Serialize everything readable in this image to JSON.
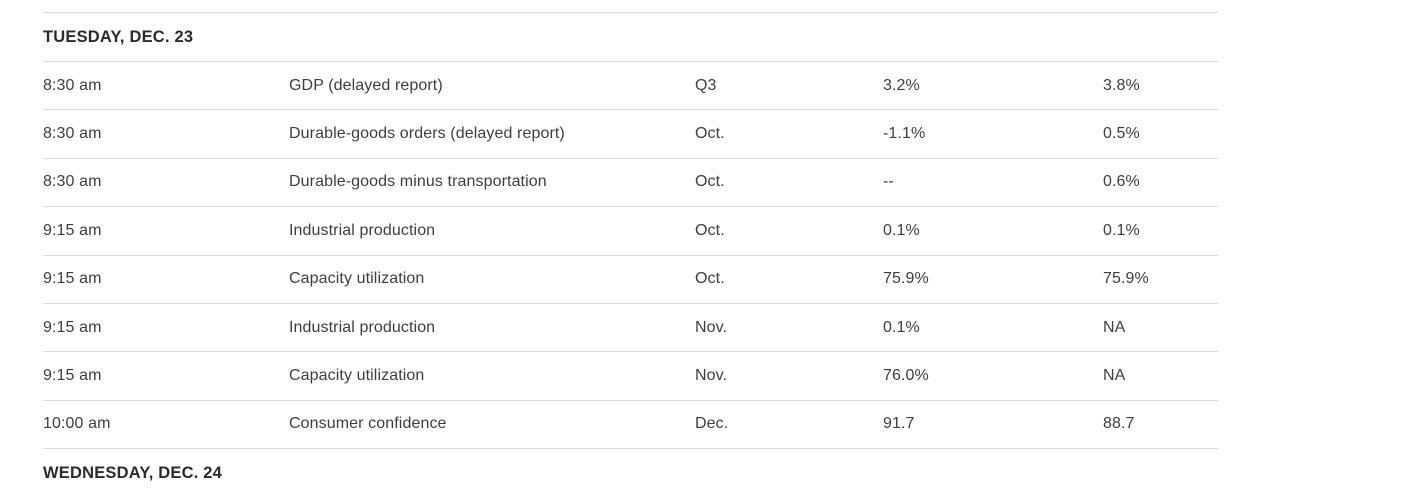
{
  "colors": {
    "background": "#ffffff",
    "day_header_text": "#2b2b2b",
    "cell_text": "#3e3e3e",
    "divider": "#dbdbdb"
  },
  "calendar": {
    "days": [
      {
        "label": "TUESDAY, DEC. 23",
        "rows": [
          {
            "time": "8:30 am",
            "report": "GDP (delayed report)",
            "period": "Q3",
            "value1": "3.2%",
            "value2": "3.8%"
          },
          {
            "time": "8:30 am",
            "report": "Durable-goods orders (delayed report)",
            "period": "Oct.",
            "value1": "-1.1%",
            "value2": "0.5%"
          },
          {
            "time": "8:30 am",
            "report": "Durable-goods minus transportation",
            "period": "Oct.",
            "value1": "--",
            "value2": "0.6%"
          },
          {
            "time": "9:15 am",
            "report": "Industrial production",
            "period": "Oct.",
            "value1": "0.1%",
            "value2": "0.1%"
          },
          {
            "time": "9:15 am",
            "report": "Capacity utilization",
            "period": "Oct.",
            "value1": "75.9%",
            "value2": "75.9%"
          },
          {
            "time": "9:15 am",
            "report": "Industrial production",
            "period": "Nov.",
            "value1": "0.1%",
            "value2": "NA"
          },
          {
            "time": "9:15 am",
            "report": "Capacity utilization",
            "period": "Nov.",
            "value1": "76.0%",
            "value2": "NA"
          },
          {
            "time": "10:00 am",
            "report": "Consumer confidence",
            "period": "Dec.",
            "value1": "91.7",
            "value2": "88.7"
          }
        ]
      },
      {
        "label": "WEDNESDAY, DEC. 24",
        "rows": []
      }
    ]
  }
}
